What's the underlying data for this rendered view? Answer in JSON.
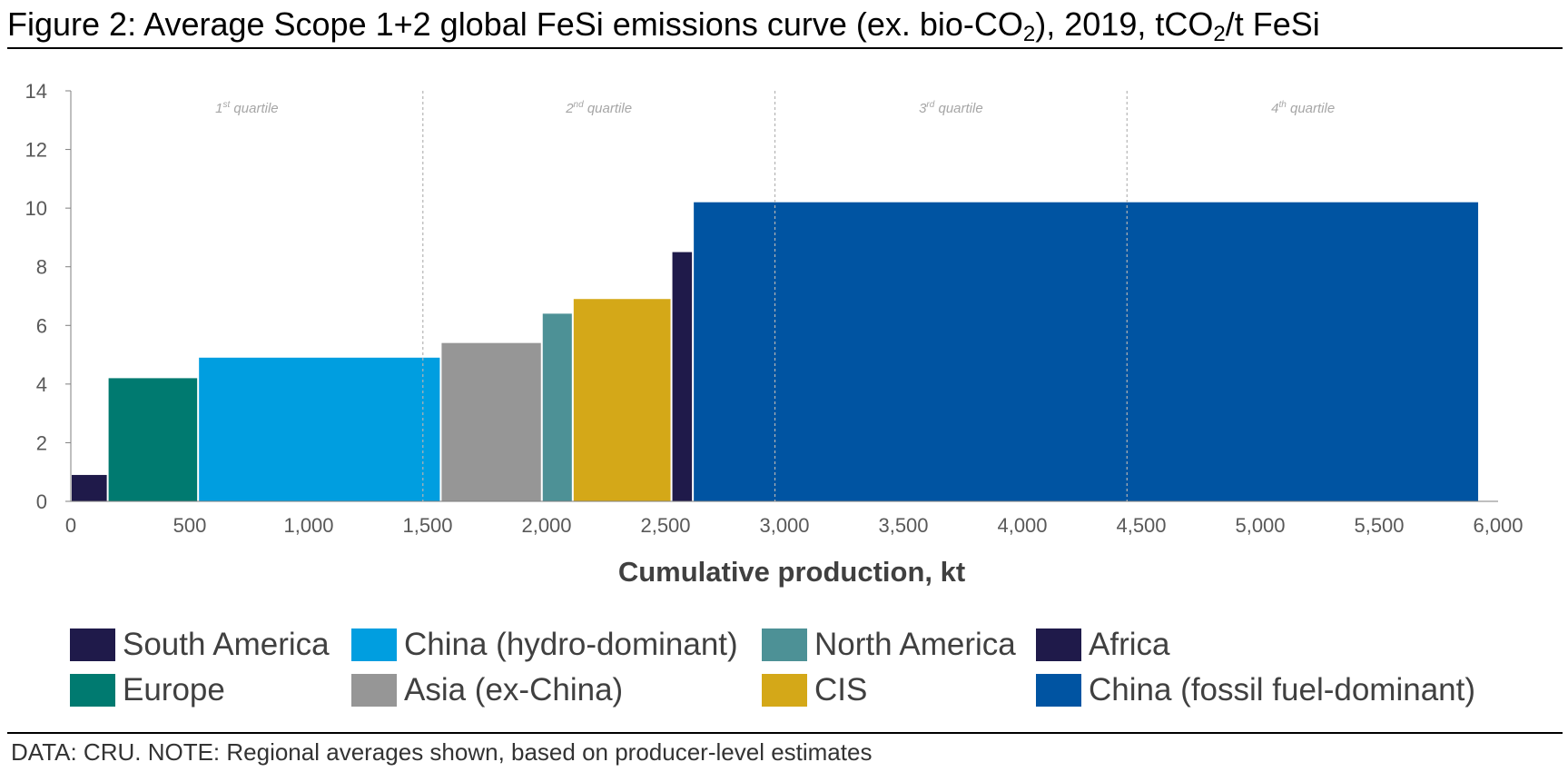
{
  "title": {
    "part1": "Figure 2: Average Scope 1+2 global FeSi emissions curve (ex. bio-CO",
    "sub1": "2",
    "part2": "), 2019, tCO",
    "sub2": "2",
    "part3": "/t FeSi"
  },
  "note": "DATA: CRU. NOTE: Regional averages shown, based on producer-level estimates",
  "chart_data": {
    "type": "bar",
    "subtype": "variable-width cost curve",
    "xlabel": "Cumulative production, kt",
    "ylabel": "",
    "xlim": [
      0,
      6000
    ],
    "ylim": [
      0,
      14
    ],
    "x_ticks": [
      "0",
      "500",
      "1,000",
      "1,500",
      "2,000",
      "2,500",
      "3,000",
      "3,500",
      "4,000",
      "4,500",
      "5,000",
      "5,500",
      "6,000"
    ],
    "x_tick_values": [
      0,
      500,
      1000,
      1500,
      2000,
      2500,
      3000,
      3500,
      4000,
      4500,
      5000,
      5500,
      6000
    ],
    "y_ticks": [
      "0",
      "2",
      "4",
      "6",
      "8",
      "10",
      "12",
      "14"
    ],
    "y_tick_values": [
      0,
      2,
      4,
      6,
      8,
      10,
      12,
      14
    ],
    "segments": [
      {
        "region": "South America",
        "x_start": 0,
        "x_end": 155,
        "value": 0.9,
        "color": "#1f1a4a"
      },
      {
        "region": "Europe",
        "x_start": 155,
        "x_end": 535,
        "value": 4.2,
        "color": "#007a70"
      },
      {
        "region": "China (hydro-dominant)",
        "x_start": 535,
        "x_end": 1555,
        "value": 4.9,
        "color": "#009ee0"
      },
      {
        "region": "Asia (ex-China)",
        "x_start": 1555,
        "x_end": 1980,
        "value": 5.4,
        "color": "#969696"
      },
      {
        "region": "North America",
        "x_start": 1980,
        "x_end": 2110,
        "value": 6.4,
        "color": "#4d9196"
      },
      {
        "region": "CIS",
        "x_start": 2110,
        "x_end": 2525,
        "value": 6.9,
        "color": "#d4a818"
      },
      {
        "region": "Africa",
        "x_start": 2525,
        "x_end": 2615,
        "value": 8.5,
        "color": "#1f1a4a"
      },
      {
        "region": "China (fossil fuel-dominant)",
        "x_start": 2615,
        "x_end": 5920,
        "value": 10.2,
        "color": "#0054a2"
      }
    ],
    "quartiles": [
      {
        "label": "1",
        "sup": "st",
        "suffix": " quartile",
        "x_start": 0,
        "x_end": 1480
      },
      {
        "label": "2",
        "sup": "nd",
        "suffix": " quartile",
        "x_start": 1480,
        "x_end": 2960
      },
      {
        "label": "3",
        "sup": "rd",
        "suffix": " quartile",
        "x_start": 2960,
        "x_end": 4440
      },
      {
        "label": "4",
        "sup": "th",
        "suffix": " quartile",
        "x_start": 4440,
        "x_end": 5920
      }
    ],
    "quartile_boundaries": [
      1480,
      2960,
      4440
    ]
  },
  "legend": {
    "items": [
      {
        "label": "South America",
        "color": "#1f1a4a"
      },
      {
        "label": "China (hydro-dominant)",
        "color": "#009ee0"
      },
      {
        "label": "North America",
        "color": "#4d9196"
      },
      {
        "label": "Africa",
        "color": "#1f1a4a"
      },
      {
        "label": "Europe",
        "color": "#007a70"
      },
      {
        "label": "Asia (ex-China)",
        "color": "#969696"
      },
      {
        "label": "CIS",
        "color": "#d4a818"
      },
      {
        "label": "China (fossil fuel-dominant)",
        "color": "#0054a2"
      }
    ]
  }
}
